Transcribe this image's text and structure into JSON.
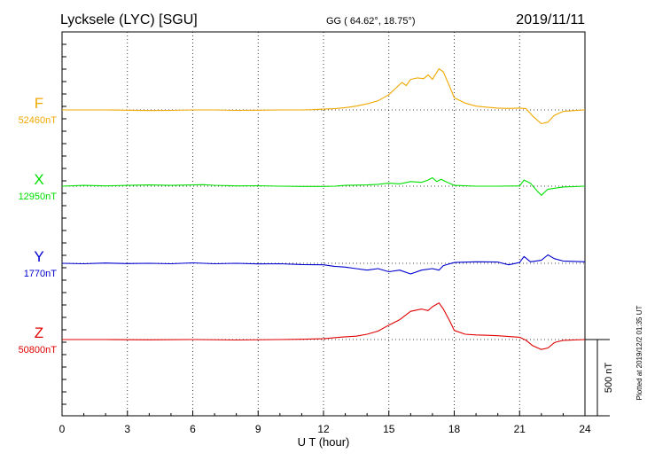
{
  "header": {
    "station": "Lycksele (LYC)  [SGU]",
    "coords": "GG ( 64.62°,  18.75°)",
    "date": "2019/11/11"
  },
  "footer": {
    "plotted": "Plotted at 2019/12/2 01:35 UT"
  },
  "chart_data": {
    "type": "line",
    "title": "Lycksele (LYC)  [SGU]",
    "xlabel": "U T (hour)",
    "xlim": [
      0,
      24
    ],
    "xticks": [
      0,
      3,
      6,
      9,
      12,
      15,
      18,
      21,
      24
    ],
    "grid": true,
    "scale_bar": {
      "label": "500 nT",
      "value_nT": 500
    },
    "series": [
      {
        "name": "F",
        "baseline_label": "52460nT",
        "color": "#f0a800",
        "points": [
          [
            0,
            0
          ],
          [
            1,
            0
          ],
          [
            2,
            0
          ],
          [
            3,
            -2
          ],
          [
            4,
            -4
          ],
          [
            5,
            -3
          ],
          [
            6,
            0
          ],
          [
            7,
            0
          ],
          [
            8,
            -3
          ],
          [
            9,
            -2
          ],
          [
            10,
            0
          ],
          [
            11,
            0
          ],
          [
            11.5,
            2
          ],
          [
            12,
            5
          ],
          [
            12.5,
            8
          ],
          [
            13,
            15
          ],
          [
            13.5,
            25
          ],
          [
            14,
            40
          ],
          [
            14.5,
            60
          ],
          [
            15,
            100
          ],
          [
            15.3,
            140
          ],
          [
            15.6,
            180
          ],
          [
            15.8,
            160
          ],
          [
            16,
            200
          ],
          [
            16.3,
            210
          ],
          [
            16.6,
            205
          ],
          [
            16.8,
            230
          ],
          [
            17,
            200
          ],
          [
            17.3,
            270
          ],
          [
            17.5,
            250
          ],
          [
            17.8,
            150
          ],
          [
            18,
            80
          ],
          [
            18.5,
            45
          ],
          [
            19,
            25
          ],
          [
            19.5,
            18
          ],
          [
            20,
            12
          ],
          [
            20.5,
            10
          ],
          [
            21,
            12
          ],
          [
            21.3,
            8
          ],
          [
            21.6,
            -40
          ],
          [
            22,
            -90
          ],
          [
            22.3,
            -80
          ],
          [
            22.6,
            -35
          ],
          [
            23,
            -10
          ],
          [
            23.5,
            -4
          ],
          [
            24,
            0
          ]
        ]
      },
      {
        "name": "X",
        "baseline_label": "12950nT",
        "color": "#00e000",
        "points": [
          [
            0,
            0
          ],
          [
            1,
            5
          ],
          [
            2,
            2
          ],
          [
            3,
            5
          ],
          [
            4,
            8
          ],
          [
            5,
            5
          ],
          [
            6,
            8
          ],
          [
            6.5,
            10
          ],
          [
            7,
            6
          ],
          [
            8,
            2
          ],
          [
            9,
            3
          ],
          [
            10,
            0
          ],
          [
            11,
            -2
          ],
          [
            12,
            -2
          ],
          [
            12.5,
            0
          ],
          [
            13,
            5
          ],
          [
            14,
            8
          ],
          [
            14.5,
            12
          ],
          [
            15,
            20
          ],
          [
            15.5,
            15
          ],
          [
            16,
            30
          ],
          [
            16.5,
            25
          ],
          [
            16.8,
            40
          ],
          [
            17,
            55
          ],
          [
            17.2,
            30
          ],
          [
            17.4,
            45
          ],
          [
            17.6,
            30
          ],
          [
            18,
            5
          ],
          [
            19,
            0
          ],
          [
            20,
            0
          ],
          [
            21,
            2
          ],
          [
            21.2,
            40
          ],
          [
            21.5,
            20
          ],
          [
            21.8,
            -30
          ],
          [
            22,
            -60
          ],
          [
            22.3,
            -20
          ],
          [
            23,
            -5
          ],
          [
            24,
            0
          ]
        ]
      },
      {
        "name": "Y",
        "baseline_label": "1770nT",
        "color": "#0000d0",
        "points": [
          [
            0,
            0
          ],
          [
            1,
            -3
          ],
          [
            2,
            2
          ],
          [
            3,
            -2
          ],
          [
            4,
            0
          ],
          [
            5,
            -3
          ],
          [
            6,
            3
          ],
          [
            7,
            -3
          ],
          [
            8,
            0
          ],
          [
            9,
            -4
          ],
          [
            10,
            -3
          ],
          [
            11,
            -8
          ],
          [
            12,
            -10
          ],
          [
            12.5,
            -20
          ],
          [
            13,
            -25
          ],
          [
            13.5,
            -35
          ],
          [
            14,
            -45
          ],
          [
            14.5,
            -35
          ],
          [
            15,
            -55
          ],
          [
            15.5,
            -45
          ],
          [
            16,
            -70
          ],
          [
            16.5,
            -45
          ],
          [
            17,
            -35
          ],
          [
            17.3,
            -45
          ],
          [
            17.5,
            -15
          ],
          [
            18,
            5
          ],
          [
            19,
            10
          ],
          [
            20,
            8
          ],
          [
            20.5,
            -10
          ],
          [
            21,
            5
          ],
          [
            21.2,
            45
          ],
          [
            21.5,
            10
          ],
          [
            22,
            20
          ],
          [
            22.3,
            55
          ],
          [
            22.6,
            30
          ],
          [
            23,
            15
          ],
          [
            24,
            10
          ]
        ]
      },
      {
        "name": "Z",
        "baseline_label": "50800nT",
        "color": "#e00000",
        "points": [
          [
            0,
            0
          ],
          [
            2,
            0
          ],
          [
            4,
            -2
          ],
          [
            6,
            0
          ],
          [
            8,
            -3
          ],
          [
            10,
            0
          ],
          [
            11,
            2
          ],
          [
            12,
            5
          ],
          [
            12.5,
            12
          ],
          [
            13,
            18
          ],
          [
            13.5,
            22
          ],
          [
            14,
            35
          ],
          [
            14.5,
            55
          ],
          [
            15,
            95
          ],
          [
            15.5,
            130
          ],
          [
            16,
            185
          ],
          [
            16.5,
            200
          ],
          [
            16.8,
            190
          ],
          [
            17,
            215
          ],
          [
            17.3,
            240
          ],
          [
            17.5,
            200
          ],
          [
            17.8,
            120
          ],
          [
            18,
            60
          ],
          [
            18.5,
            35
          ],
          [
            19,
            30
          ],
          [
            19.5,
            28
          ],
          [
            20,
            25
          ],
          [
            20.5,
            20
          ],
          [
            21,
            15
          ],
          [
            21.3,
            -5
          ],
          [
            21.6,
            -40
          ],
          [
            22,
            -65
          ],
          [
            22.3,
            -55
          ],
          [
            22.6,
            -20
          ],
          [
            23,
            -5
          ],
          [
            24,
            0
          ]
        ]
      }
    ]
  }
}
